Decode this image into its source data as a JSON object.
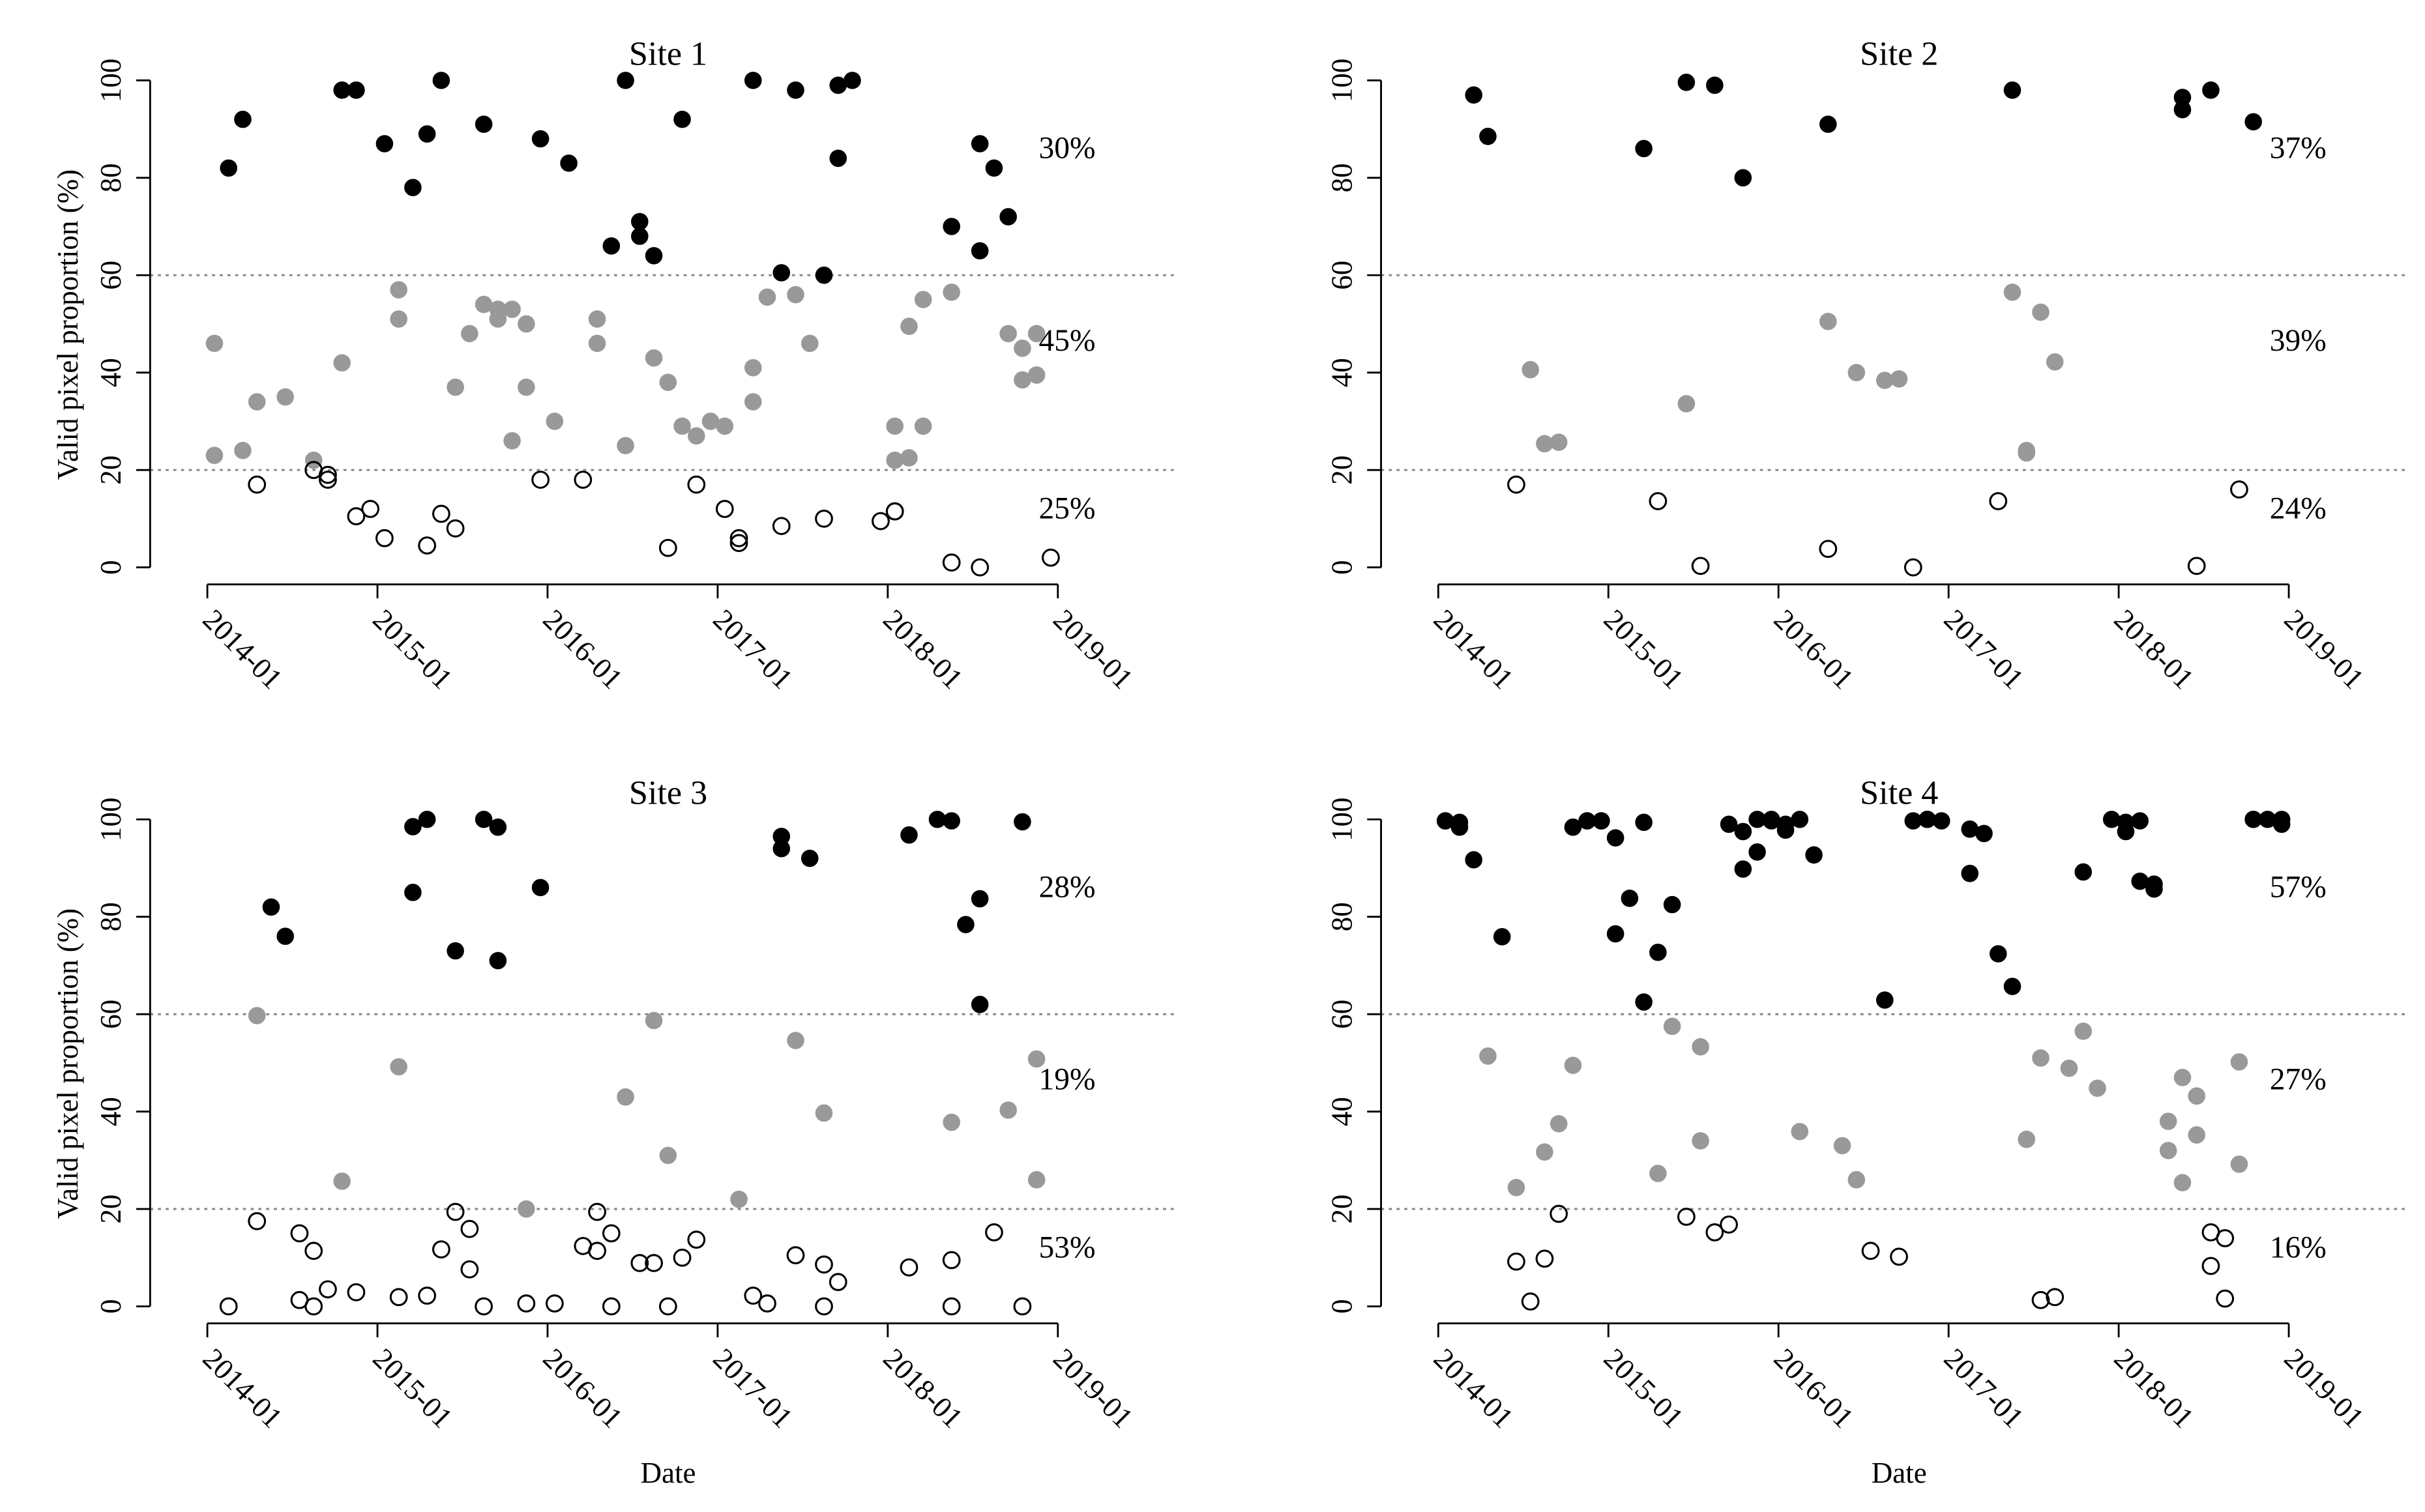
{
  "chart_data": [
    {
      "type": "scatter",
      "title": "Site 1",
      "ylabel": "Valid pixel proportion (%)",
      "xlim": [
        "2014-01",
        "2019-01"
      ],
      "xticks": [
        "2014-01",
        "2015-01",
        "2016-01",
        "2017-01",
        "2018-01",
        "2019-01"
      ],
      "ylim": [
        0,
        100
      ],
      "yticks": [
        0,
        20,
        40,
        60,
        80,
        100
      ],
      "hlines": [
        20,
        60
      ],
      "annotations": [
        "30%",
        "45%",
        "25%"
      ],
      "series": [
        {
          "color": "#000000",
          "marker": "filled",
          "x": [
            "2014-02",
            "2014-03",
            "2014-10",
            "2014-11",
            "2015-01",
            "2015-03",
            "2015-04",
            "2015-05",
            "2015-08",
            "2015-12",
            "2016-02",
            "2016-05",
            "2016-06",
            "2016-07",
            "2016-07",
            "2016-08",
            "2016-10",
            "2017-03",
            "2017-05",
            "2017-06",
            "2017-08",
            "2017-09",
            "2017-09",
            "2017-10",
            "2018-05",
            "2018-07",
            "2018-07",
            "2018-08",
            "2018-09"
          ],
          "values": [
            82,
            92,
            98,
            98,
            87,
            78,
            89,
            100,
            91,
            88,
            83,
            66,
            100,
            71,
            68,
            64,
            92,
            100,
            60.5,
            98,
            60,
            99,
            84,
            100,
            70,
            87,
            65,
            82,
            72
          ]
        },
        {
          "color": "#999999",
          "marker": "filled",
          "x": [
            "2014-01",
            "2014-01",
            "2014-03",
            "2014-04",
            "2014-06",
            "2014-08",
            "2014-10",
            "2015-02",
            "2015-02",
            "2015-06",
            "2015-07",
            "2015-08",
            "2015-09",
            "2015-09",
            "2015-10",
            "2015-10",
            "2015-11",
            "2015-11",
            "2016-01",
            "2016-04",
            "2016-04",
            "2016-06",
            "2016-08",
            "2016-09",
            "2016-10",
            "2016-11",
            "2016-12",
            "2017-01",
            "2017-03",
            "2017-03",
            "2017-04",
            "2017-06",
            "2017-07",
            "2018-01",
            "2018-01",
            "2018-02",
            "2018-02",
            "2018-03",
            "2018-03",
            "2018-05",
            "2018-09",
            "2018-10",
            "2018-10",
            "2018-11",
            "2018-11"
          ],
          "values": [
            23,
            46,
            24,
            34,
            35,
            22,
            42,
            51,
            57,
            37,
            48,
            54,
            51,
            53,
            53,
            26,
            50,
            37,
            30,
            51,
            46,
            25,
            43,
            38,
            29,
            27,
            30,
            29,
            41,
            34,
            55.5,
            56,
            46,
            29,
            22,
            22.5,
            49.5,
            29,
            55,
            56.5,
            48,
            38.5,
            45,
            39.5,
            48
          ]
        },
        {
          "color": "#000000",
          "marker": "open",
          "x": [
            "2014-04",
            "2014-08",
            "2014-09",
            "2014-09",
            "2014-11",
            "2014-12",
            "2015-01",
            "2015-04",
            "2015-05",
            "2015-06",
            "2015-12",
            "2016-03",
            "2016-09",
            "2016-11",
            "2017-01",
            "2017-02",
            "2017-02",
            "2017-05",
            "2017-08",
            "2017-12",
            "2018-01",
            "2018-01",
            "2018-05",
            "2018-07",
            "2018-12"
          ],
          "values": [
            17,
            20,
            19,
            18,
            10.5,
            12,
            6,
            4.5,
            11,
            8,
            18,
            18,
            4,
            17,
            12,
            5,
            6,
            8.5,
            10,
            9.5,
            11.5,
            11.5,
            1,
            0,
            2
          ]
        }
      ]
    },
    {
      "type": "scatter",
      "title": "Site 2",
      "xlim": [
        "2014-01",
        "2019-01"
      ],
      "xticks": [
        "2014-01",
        "2015-01",
        "2016-01",
        "2017-01",
        "2018-01",
        "2019-01"
      ],
      "ylim": [
        0,
        100
      ],
      "yticks": [
        0,
        20,
        40,
        60,
        80,
        100
      ],
      "hlines": [
        20,
        60
      ],
      "annotations": [
        "37%",
        "39%",
        "24%"
      ],
      "series": [
        {
          "color": "#000000",
          "marker": "filled",
          "x": [
            "2014-03",
            "2014-04",
            "2015-03",
            "2015-06",
            "2015-08",
            "2015-10",
            "2016-04",
            "2017-05",
            "2018-05",
            "2018-05",
            "2018-07",
            "2018-10"
          ],
          "values": [
            97,
            88.5,
            86,
            99.6,
            99,
            80,
            91,
            98,
            94,
            96.5,
            98,
            91.5
          ]
        },
        {
          "color": "#999999",
          "marker": "filled",
          "x": [
            "2014-07",
            "2014-08",
            "2014-09",
            "2015-06",
            "2016-04",
            "2016-06",
            "2016-08",
            "2016-09",
            "2017-05",
            "2017-06",
            "2017-06",
            "2017-07",
            "2017-08"
          ],
          "values": [
            40.6,
            25.4,
            25.7,
            33.6,
            50.5,
            40,
            38.4,
            38.7,
            56.5,
            23.5,
            24,
            52.4,
            42.2
          ]
        },
        {
          "color": "#000000",
          "marker": "open",
          "x": [
            "2014-06",
            "2015-04",
            "2015-07",
            "2016-04",
            "2016-10",
            "2017-04",
            "2018-06",
            "2018-09"
          ],
          "values": [
            17,
            13.6,
            0.3,
            3.8,
            0,
            13.6,
            0.3,
            16
          ]
        }
      ]
    },
    {
      "type": "scatter",
      "title": "Site 3",
      "ylabel": "Valid pixel proportion (%)",
      "xlabel": "Date",
      "xlim": [
        "2014-01",
        "2019-01"
      ],
      "xticks": [
        "2014-01",
        "2015-01",
        "2016-01",
        "2017-01",
        "2018-01",
        "2019-01"
      ],
      "ylim": [
        0,
        100
      ],
      "yticks": [
        0,
        20,
        40,
        60,
        80,
        100
      ],
      "hlines": [
        20,
        60
      ],
      "annotations": [
        "28%",
        "19%",
        "53%"
      ],
      "series": [
        {
          "color": "#000000",
          "marker": "filled",
          "x": [
            "2014-05",
            "2014-06",
            "2015-03",
            "2015-03",
            "2015-04",
            "2015-06",
            "2015-08",
            "2015-09",
            "2015-09",
            "2015-12",
            "2017-05",
            "2017-05",
            "2017-07",
            "2018-02",
            "2018-04",
            "2018-05",
            "2018-06",
            "2018-07",
            "2018-07",
            "2018-10"
          ],
          "values": [
            82,
            76,
            85,
            98.5,
            100,
            73,
            100,
            98.4,
            71,
            86,
            96.5,
            94,
            92,
            96.8,
            100,
            99.7,
            78.4,
            62,
            83.7,
            99.5
          ]
        },
        {
          "color": "#999999",
          "marker": "filled",
          "x": [
            "2014-04",
            "2014-10",
            "2015-02",
            "2015-11",
            "2016-06",
            "2016-08",
            "2016-09",
            "2017-02",
            "2017-06",
            "2017-08",
            "2018-05",
            "2018-09",
            "2018-11",
            "2018-11"
          ],
          "values": [
            59.7,
            25.7,
            49.2,
            20,
            43,
            58.7,
            31,
            22,
            54.6,
            39.7,
            37.8,
            40.3,
            26,
            50.8
          ]
        },
        {
          "color": "#000000",
          "marker": "open",
          "x": [
            "2014-02",
            "2014-04",
            "2014-07",
            "2014-07",
            "2014-08",
            "2014-08",
            "2014-09",
            "2014-11",
            "2015-02",
            "2015-04",
            "2015-06",
            "2015-05",
            "2015-07",
            "2015-07",
            "2015-08",
            "2015-11",
            "2016-01",
            "2016-03",
            "2016-04",
            "2016-04",
            "2016-05",
            "2016-05",
            "2016-07",
            "2016-08",
            "2016-09",
            "2016-10",
            "2016-11",
            "2017-03",
            "2017-04",
            "2017-06",
            "2017-08",
            "2017-08",
            "2017-09",
            "2018-02",
            "2018-05",
            "2018-05",
            "2018-08",
            "2018-10"
          ],
          "values": [
            0,
            17.5,
            1.3,
            15,
            11.4,
            0,
            3.5,
            2.9,
            1.9,
            2.2,
            19.4,
            11.7,
            15.9,
            7.6,
            0,
            0.6,
            0.6,
            12.4,
            11.4,
            19.4,
            15,
            0,
            8.9,
            8.9,
            0,
            10,
            13.7,
            2.2,
            0.6,
            10.5,
            8.6,
            0,
            5,
            8,
            0,
            9.5,
            15.2,
            0
          ]
        }
      ]
    },
    {
      "type": "scatter",
      "title": "Site 4",
      "xlabel": "Date",
      "xlim": [
        "2014-01",
        "2019-01"
      ],
      "xticks": [
        "2014-01",
        "2015-01",
        "2016-01",
        "2017-01",
        "2018-01",
        "2019-01"
      ],
      "ylim": [
        0,
        100
      ],
      "yticks": [
        0,
        20,
        40,
        60,
        80,
        100
      ],
      "hlines": [
        20,
        60
      ],
      "annotations": [
        "57%",
        "27%",
        "16%"
      ],
      "series": [
        {
          "color": "#000000",
          "marker": "filled",
          "x": [
            "2014-01",
            "2014-01",
            "2014-02",
            "2014-02",
            "2014-03",
            "2014-05",
            "2014-10",
            "2014-11",
            "2014-11",
            "2014-12",
            "2014-12",
            "2015-01",
            "2015-01",
            "2015-02",
            "2015-03",
            "2015-03",
            "2015-04",
            "2015-05",
            "2015-09",
            "2015-10",
            "2015-10",
            "2015-11",
            "2015-11",
            "2015-12",
            "2015-12",
            "2016-01",
            "2016-01",
            "2016-02",
            "2016-03",
            "2016-08",
            "2016-10",
            "2016-11",
            "2016-11",
            "2016-12",
            "2017-02",
            "2017-02",
            "2017-03",
            "2017-04",
            "2017-05",
            "2017-10",
            "2017-12",
            "2018-01",
            "2018-01",
            "2018-02",
            "2018-02",
            "2018-03",
            "2018-03",
            "2018-10",
            "2018-10",
            "2018-11",
            "2018-12",
            "2018-12"
          ],
          "values": [
            99.7,
            99.7,
            99.4,
            98.4,
            91.7,
            75.9,
            98.4,
            99.7,
            99.7,
            99.7,
            99.7,
            76.5,
            96.2,
            83.8,
            99.4,
            62.5,
            72.7,
            82.5,
            99,
            97.5,
            89.8,
            93.3,
            100,
            99.7,
            100,
            97.8,
            99,
            100,
            92.7,
            62.9,
            99.7,
            100,
            100,
            99.7,
            88.9,
            98,
            97.1,
            72.4,
            65.7,
            89.2,
            100,
            99.4,
            97.5,
            99.7,
            87.3,
            85.7,
            86.7,
            100,
            100,
            100,
            100,
            99
          ]
        },
        {
          "color": "#999999",
          "marker": "filled",
          "x": [
            "2014-04",
            "2014-06",
            "2014-08",
            "2014-09",
            "2014-10",
            "2015-04",
            "2015-05",
            "2015-07",
            "2015-07",
            "2016-02",
            "2016-05",
            "2016-06",
            "2017-06",
            "2017-07",
            "2017-09",
            "2017-10",
            "2017-11",
            "2018-04",
            "2018-04",
            "2018-05",
            "2018-05",
            "2018-06",
            "2018-06",
            "2018-09",
            "2018-09"
          ],
          "values": [
            51.4,
            24.4,
            31.7,
            37.5,
            49.5,
            27.3,
            57.5,
            34,
            53.3,
            35.9,
            33,
            26,
            34.3,
            51,
            48.9,
            56.5,
            44.8,
            38,
            32,
            25.4,
            47,
            43.2,
            35.2,
            29.2,
            50.2
          ]
        },
        {
          "color": "#000000",
          "marker": "open",
          "x": [
            "2014-06",
            "2014-07",
            "2014-08",
            "2014-09",
            "2015-06",
            "2015-08",
            "2015-09",
            "2016-07",
            "2016-09",
            "2017-07",
            "2017-08",
            "2018-07",
            "2018-08",
            "2018-07",
            "2018-08"
          ],
          "values": [
            9.2,
            1,
            9.8,
            19,
            18.4,
            15.2,
            16.8,
            11.4,
            10.2,
            1.3,
            1.9,
            15.2,
            14,
            8.3,
            1.6
          ]
        }
      ]
    }
  ]
}
